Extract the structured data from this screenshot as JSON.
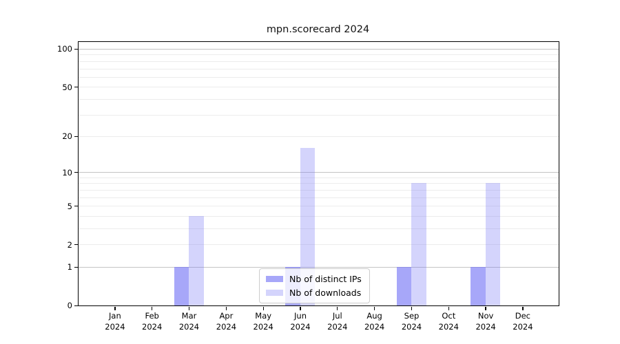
{
  "chart_data": {
    "type": "bar",
    "title": "mpn.scorecard 2024",
    "categories": [
      "Jan 2024",
      "Feb 2024",
      "Mar 2024",
      "Apr 2024",
      "May 2024",
      "Jun 2024",
      "Jul 2024",
      "Aug 2024",
      "Sep 2024",
      "Oct 2024",
      "Nov 2024",
      "Dec 2024"
    ],
    "series": [
      {
        "name": "Nb of distinct IPs",
        "color": "rgba(113,113,245,0.62)",
        "values": [
          0,
          0,
          1,
          0,
          0,
          1,
          0,
          0,
          1,
          0,
          1,
          0
        ]
      },
      {
        "name": "Nb of downloads",
        "color": "rgba(113,113,245,0.30)",
        "values": [
          0,
          0,
          4,
          0,
          0,
          16,
          0,
          0,
          8,
          0,
          8,
          0
        ]
      }
    ],
    "yscale": "log1p",
    "ylim": [
      0,
      113
    ],
    "yticks": [
      0,
      1,
      2,
      5,
      10,
      20,
      50,
      100
    ],
    "major_gridlines": [
      1,
      10,
      100
    ],
    "minor_gridlines": [
      2,
      3,
      4,
      5,
      6,
      7,
      8,
      9,
      20,
      30,
      40,
      50,
      60,
      70,
      80,
      90
    ],
    "grid": true,
    "legend_position": "bottom-center",
    "colors": {
      "axis": "#000000",
      "major_grid": "#c3c3c3",
      "minor_grid": "#ececec",
      "legend_border": "#cccccc",
      "bar_dark": "rgba(113,113,245,0.62)",
      "bar_light": "rgba(113,113,245,0.30)"
    }
  }
}
